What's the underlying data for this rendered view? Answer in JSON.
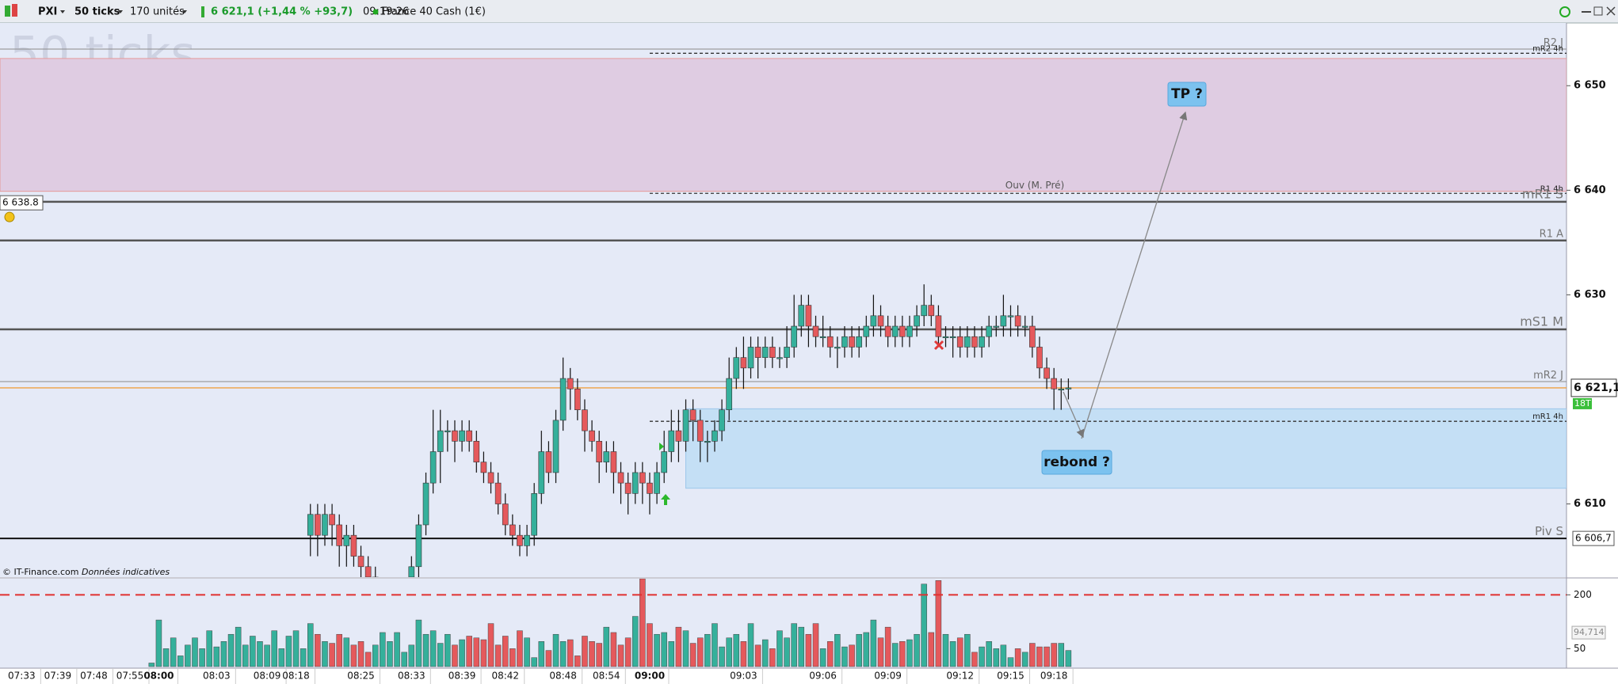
{
  "toolbar": {
    "symbol": "PXI",
    "period": "50 ticks",
    "quantity": "170 unités",
    "quote": "6 621,1 (+1,44 % +93,7)",
    "time": "09:19:26",
    "instrument": "France 40 Cash (1€)"
  },
  "chart_data": {
    "type": "candlestick",
    "watermark": "50 ticks",
    "copyright": "© IT-Finance.com",
    "disclaimer": "Données indicatives",
    "xlim": [
      -21,
      196
    ],
    "xticks": [
      {
        "value": -18,
        "label": "07:33"
      },
      {
        "value": -13,
        "label": "07:39"
      },
      {
        "value": -8,
        "label": "07:48"
      },
      {
        "value": -3,
        "label": "07:55"
      },
      {
        "value": 1,
        "label": "08:00",
        "bold": true
      },
      {
        "value": 9,
        "label": "08:03"
      },
      {
        "value": 16,
        "label": "08:09"
      },
      {
        "value": 20,
        "label": "08:18"
      },
      {
        "value": 29,
        "label": "08:25"
      },
      {
        "value": 36,
        "label": "08:33"
      },
      {
        "value": 43,
        "label": "08:39"
      },
      {
        "value": 49,
        "label": "08:42"
      },
      {
        "value": 57,
        "label": "08:48"
      },
      {
        "value": 63,
        "label": "08:54"
      },
      {
        "value": 69,
        "label": "09:00",
        "bold": true
      },
      {
        "value": 82,
        "label": "09:03"
      },
      {
        "value": 93,
        "label": "09:06"
      },
      {
        "value": 102,
        "label": "09:09"
      },
      {
        "value": 112,
        "label": "09:12"
      },
      {
        "value": 119,
        "label": "09:15"
      },
      {
        "value": 125,
        "label": "09:18"
      }
    ],
    "ylim": [
      6603,
      6656
    ],
    "yticks": [
      {
        "value": 6650,
        "label": "6 650"
      },
      {
        "value": 6640,
        "label": "6 640"
      },
      {
        "value": 6630,
        "label": "6 630"
      },
      {
        "value": 6610,
        "label": "6 610"
      }
    ],
    "open": [
      null,
      null,
      null,
      null,
      null,
      null,
      null,
      null,
      null,
      null,
      null,
      null,
      null,
      null,
      null,
      null,
      null,
      null,
      null,
      null,
      null,
      null,
      6607,
      6609,
      6607,
      6609,
      6608,
      6606,
      6607,
      6605,
      6604,
      6603,
      null,
      null,
      null,
      null,
      6603,
      6604,
      6608,
      6612,
      6615,
      6617,
      6617,
      6616,
      6617,
      6616,
      6614,
      6613,
      6612,
      6610,
      6608,
      6607,
      6606,
      6607,
      6611,
      6615,
      6613,
      6618,
      6622,
      6621,
      6619,
      6617,
      6616,
      6614,
      6615,
      6613,
      6612,
      6611,
      6613,
      6612,
      6611,
      6613,
      6615,
      6617,
      6616,
      6619,
      6618,
      6616,
      6616,
      6617,
      6619,
      6622,
      6624,
      6623,
      6625,
      6624,
      6625,
      6624,
      6624,
      6625,
      6627,
      6629,
      6627,
      6626,
      6626,
      6625,
      6625,
      6626,
      6625,
      6626,
      6627,
      6628,
      6627,
      6626,
      6627,
      6626,
      6627,
      6628,
      6629,
      6628,
      6626,
      6626,
      6626,
      6625,
      6626,
      6625,
      6626,
      6627,
      6627,
      6628,
      6628,
      6627,
      6627,
      6625,
      6623,
      6622,
      6621,
      6621
    ],
    "high": [
      null,
      null,
      null,
      null,
      null,
      null,
      null,
      null,
      null,
      null,
      null,
      null,
      null,
      null,
      null,
      null,
      null,
      null,
      null,
      null,
      null,
      null,
      6610,
      6610,
      6610,
      6610,
      6609,
      6608,
      6608,
      6606,
      6605,
      6604,
      null,
      null,
      null,
      null,
      6605,
      6609,
      6613,
      6619,
      6619,
      6618,
      6618,
      6618,
      6618,
      6617,
      6615,
      6614,
      6613,
      6611,
      6609,
      6608,
      6608,
      6612,
      6617,
      6616,
      6619,
      6624,
      6623,
      6622,
      6620,
      6618,
      6617,
      6616,
      6616,
      6614,
      6613,
      6614,
      6614,
      6613,
      6614,
      6617,
      6619,
      6619,
      6620,
      6620,
      6619,
      6617,
      6618,
      6620,
      6624,
      6625,
      6626,
      6626,
      6626,
      6626,
      6626,
      6625,
      6627,
      6630,
      6630,
      6630,
      6628,
      6628,
      6627,
      6626,
      6627,
      6627,
      6627,
      6628,
      6630,
      6629,
      6628,
      6628,
      6628,
      6628,
      6629,
      6631,
      6630,
      6629,
      6627,
      6627,
      6627,
      6627,
      6627,
      6627,
      6628,
      6628,
      6630,
      6629,
      6629,
      6628,
      6628,
      6626,
      6624,
      6623,
      6622,
      6622
    ],
    "low": [
      null,
      null,
      null,
      null,
      null,
      null,
      null,
      null,
      null,
      null,
      null,
      null,
      null,
      null,
      null,
      null,
      null,
      null,
      null,
      null,
      null,
      null,
      6605,
      6605,
      6606,
      6606,
      6604,
      6604,
      6604,
      6603,
      6602,
      6602,
      null,
      null,
      null,
      null,
      6602,
      6603,
      6607,
      6611,
      6612,
      6615,
      6614,
      6615,
      6615,
      6613,
      6612,
      6611,
      6609,
      6607,
      6606,
      6605,
      6605,
      6606,
      6610,
      6612,
      6612,
      6617,
      6619,
      6618,
      6615,
      6615,
      6612,
      6613,
      6611,
      6610,
      6609,
      6610,
      6610,
      6609,
      6610,
      6612,
      6614,
      6614,
      6615,
      6616,
      6614,
      6614,
      6615,
      6616,
      6618,
      6621,
      6621,
      6622,
      6622,
      6623,
      6623,
      6623,
      6623,
      6624,
      6626,
      6625,
      6625,
      6625,
      6624,
      6623,
      6624,
      6624,
      6624,
      6625,
      6626,
      6626,
      6625,
      6625,
      6625,
      6625,
      6626,
      6627,
      6627,
      6625,
      6625,
      6624,
      6624,
      6624,
      6624,
      6624,
      6625,
      6626,
      6626,
      6626,
      6626,
      6626,
      6624,
      6622,
      6621,
      6619,
      6619,
      6620
    ],
    "close": [
      null,
      null,
      null,
      null,
      null,
      null,
      null,
      null,
      null,
      null,
      null,
      null,
      null,
      null,
      null,
      null,
      null,
      null,
      null,
      null,
      null,
      null,
      6609,
      6607,
      6609,
      6608,
      6606,
      6607,
      6605,
      6604,
      6603,
      6603,
      null,
      null,
      null,
      null,
      6604,
      6608,
      6612,
      6615,
      6617,
      6617,
      6616,
      6617,
      6616,
      6614,
      6613,
      6612,
      6610,
      6608,
      6607,
      6606,
      6607,
      6611,
      6615,
      6613,
      6618,
      6622,
      6621,
      6619,
      6617,
      6616,
      6614,
      6615,
      6613,
      6612,
      6611,
      6613,
      6612,
      6611,
      6613,
      6615,
      6617,
      6616,
      6619,
      6618,
      6616,
      6616,
      6617,
      6619,
      6622,
      6624,
      6623,
      6625,
      6624,
      6625,
      6624,
      6624,
      6625,
      6627,
      6629,
      6627,
      6626,
      6626,
      6625,
      6625,
      6626,
      6625,
      6626,
      6627,
      6628,
      6627,
      6626,
      6627,
      6626,
      6627,
      6628,
      6629,
      6628,
      6626,
      6626,
      6626,
      6625,
      6626,
      6625,
      6626,
      6627,
      6627,
      6628,
      6628,
      6627,
      6627,
      6625,
      6623,
      6622,
      6621,
      6621,
      6621.1
    ],
    "up_color": "#35b09b",
    "down_color": "#e5595c",
    "levels": [
      {
        "label": "R2 J",
        "value": 6653.5,
        "color": "#8a8a8a",
        "width": 1,
        "size": "small"
      },
      {
        "label": "mR2 4h",
        "value": 6653.1,
        "color": "#333333",
        "dash": true,
        "start": 69,
        "size": "tiny"
      },
      {
        "label": "R1 4h",
        "value": 6639.7,
        "color": "#333333",
        "dash": true,
        "start": 69,
        "size": "tiny",
        "note": "Ouv (M. Pré)"
      },
      {
        "label": "mR1 S",
        "value": 6638.9,
        "color": "#555555",
        "width": 2.5,
        "size": "large"
      },
      {
        "label": "R1 A",
        "value": 6635.2,
        "color": "#555555",
        "width": 2.5,
        "size": "small"
      },
      {
        "label": "mS1 M",
        "value": 6626.7,
        "color": "#555555",
        "width": 2.5,
        "size": "large"
      },
      {
        "label": "mR2 J",
        "value": 6621.7,
        "color": "#8a8a8a",
        "width": 1,
        "size": "small"
      },
      {
        "label": "mR1 4h",
        "value": 6617.9,
        "color": "#333333",
        "dash": true,
        "start": 69,
        "size": "tiny"
      },
      {
        "label": "Piv S",
        "value": 6606.7,
        "value_label": "6 606,7",
        "color": "#111111",
        "width": 2,
        "size": "medium"
      }
    ],
    "zones": [
      {
        "from": 6639.9,
        "to": 6652.6,
        "color": "#dfcce2",
        "border": "#e59a9a"
      },
      {
        "from": 6611.5,
        "to": 6619.1,
        "start": 74,
        "color": "#c4dff5",
        "border": "#9cc6ea"
      }
    ],
    "alert": {
      "value": 6638.8,
      "label": "6 638.8"
    },
    "last": {
      "value": 6621.1,
      "label": "6 621,1",
      "ticks": "18T",
      "color": "#f0a040"
    },
    "annotations": [
      {
        "text": "TP ?"
      },
      {
        "text": "rebond ?"
      }
    ],
    "volume": {
      "values": [
        10,
        130,
        50,
        80,
        30,
        60,
        80,
        50,
        100,
        55,
        70,
        90,
        110,
        60,
        85,
        70,
        60,
        100,
        50,
        85,
        100,
        50,
        120,
        90,
        70,
        65,
        90,
        80,
        60,
        70,
        40,
        60,
        95,
        70,
        95,
        40,
        60,
        130,
        90,
        100,
        65,
        90,
        60,
        75,
        85,
        80,
        75,
        120,
        60,
        85,
        50,
        100,
        80,
        25,
        70,
        45,
        90,
        70,
        75,
        30,
        85,
        70,
        65,
        110,
        95,
        60,
        80,
        140,
        245,
        120,
        90,
        95,
        70,
        110,
        100,
        65,
        80,
        90,
        120,
        55,
        80,
        90,
        70,
        120,
        60,
        75,
        50,
        100,
        80,
        120,
        110,
        90,
        120,
        50,
        70,
        90,
        55,
        60,
        90,
        95,
        130,
        80,
        110,
        65,
        70,
        75,
        90,
        230,
        95,
        240,
        90,
        70,
        80,
        90,
        40,
        55,
        70,
        50,
        60,
        25,
        50,
        40,
        65,
        55,
        55,
        65,
        65,
        45
      ],
      "ylim": [
        0,
        245
      ],
      "yticks": [
        200,
        50
      ],
      "threshold": 200,
      "ma": {
        "value": 94.714,
        "label": "94,714"
      }
    }
  }
}
